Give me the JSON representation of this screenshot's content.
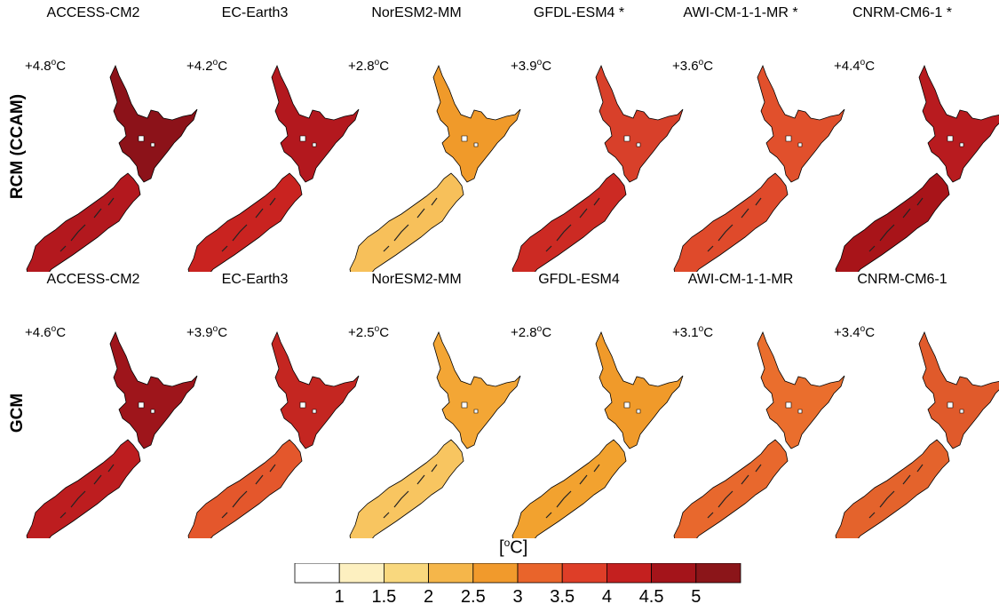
{
  "rows": [
    {
      "label": "RCM (CCAM)",
      "panels": [
        {
          "title": "ACCESS-CM2",
          "delta": "+4.8",
          "north": "#8c1219",
          "south": "#b3181e"
        },
        {
          "title": "EC-Earth3",
          "delta": "+4.2",
          "north": "#b3181e",
          "south": "#c92320"
        },
        {
          "title": "NorESM2-MM",
          "delta": "+2.8",
          "north": "#f09a2a",
          "south": "#f7c05a"
        },
        {
          "title": "GFDL-ESM4 *",
          "delta": "+3.9",
          "north": "#d8402a",
          "south": "#cc2a23"
        },
        {
          "title": "AWI-CM-1-1-MR *",
          "delta": "+3.6",
          "north": "#e1502c",
          "south": "#df4a2b"
        },
        {
          "title": "CNRM-CM6-1 *",
          "delta": "+4.4",
          "north": "#b81b1f",
          "south": "#a81419"
        }
      ]
    },
    {
      "label": "GCM",
      "panels": [
        {
          "title": "ACCESS-CM2",
          "delta": "+4.6",
          "north": "#9e151b",
          "south": "#bd1d1f"
        },
        {
          "title": "EC-Earth3",
          "delta": "+3.9",
          "north": "#c42621",
          "south": "#e4572c"
        },
        {
          "title": "NorESM2-MM",
          "delta": "+2.5",
          "north": "#f3a635",
          "south": "#f8c560"
        },
        {
          "title": "GFDL-ESM4",
          "delta": "+2.8",
          "north": "#f09a2a",
          "south": "#f2a22f"
        },
        {
          "title": "AWI-CM-1-1-MR",
          "delta": "+3.1",
          "north": "#ea6e2d",
          "south": "#e8682d"
        },
        {
          "title": "CNRM-CM6-1",
          "delta": "+3.4",
          "north": "#e05a2b",
          "south": "#e4632c"
        }
      ]
    }
  ],
  "delta_unit": "C",
  "delta_degree_mark": "o",
  "colorbar": {
    "title_open": "[",
    "title_degree": "o",
    "title_unit": "C]",
    "colors": [
      "#ffffff",
      "#fdf0c0",
      "#f9d87e",
      "#f5b64a",
      "#f19a2c",
      "#e9642b",
      "#de3e28",
      "#c4201f",
      "#a4141a",
      "#8b1519"
    ],
    "tick_labels": [
      "1",
      "1.5",
      "2",
      "2.5",
      "3",
      "3.5",
      "4",
      "4.5",
      "5"
    ]
  }
}
